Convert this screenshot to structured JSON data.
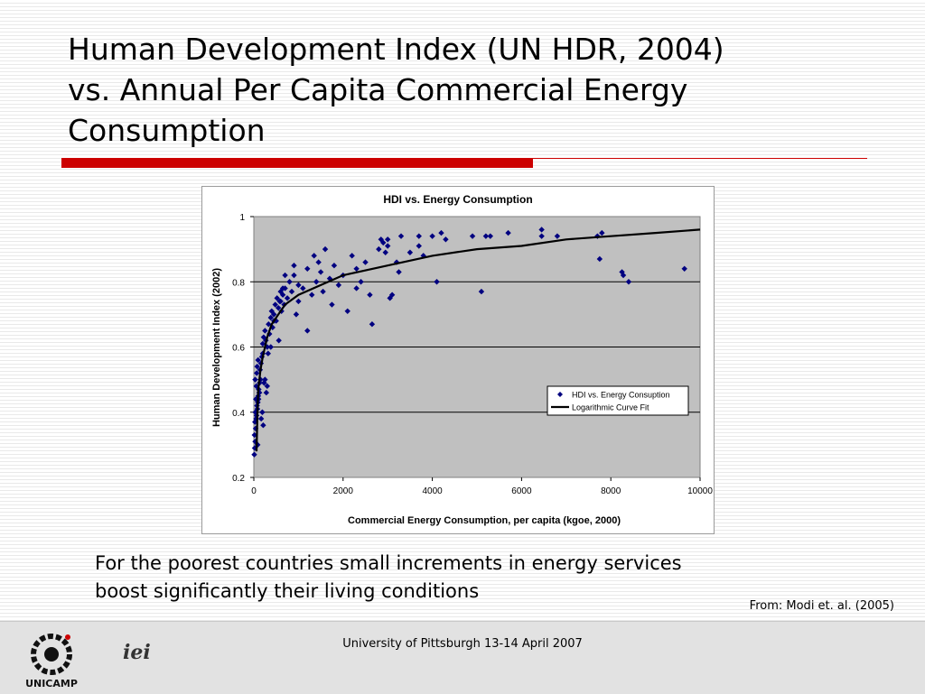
{
  "slide": {
    "title_lines": [
      "Human Development Index (UN HDR, 2004)",
      "vs. Annual Per Capita Commercial Energy",
      "Consumption"
    ],
    "caption_lines": [
      "For the poorest countries small increments in energy services",
      "boost significantly their living conditions"
    ],
    "source": "From: Modi et. al. (2005)",
    "footer_text": "University of Pittsburgh 13-14 April 2007",
    "logos": [
      {
        "name": "unicamp-logo",
        "text": "UNICAMP"
      },
      {
        "name": "iei-logo",
        "text": "iei"
      }
    ],
    "colors": {
      "accent_red": "#cc0000",
      "plot_area": "#c0c0c0",
      "marker": "#000080",
      "curve": "#000000"
    }
  },
  "chart_data": {
    "type": "scatter",
    "title": "HDI vs. Energy Consumption",
    "xlabel": "Commercial Energy Consumption, per capita (kgoe, 2000)",
    "ylabel": "Human Development Index (2002)",
    "xlim": [
      0,
      10000
    ],
    "ylim": [
      0.2,
      1
    ],
    "x_ticks": [
      0,
      2000,
      4000,
      6000,
      8000,
      10000
    ],
    "y_ticks": [
      0.2,
      0.4,
      0.6,
      0.8,
      1
    ],
    "y_tick_labels": [
      "0.2",
      "0.4",
      "0.6",
      "0.8",
      "1"
    ],
    "grid": "horizontal",
    "legend_position": "lower-right",
    "series": [
      {
        "name": "HDI vs. Energy Consuption",
        "kind": "scatter",
        "points": [
          [
            10,
            0.27
          ],
          [
            20,
            0.29
          ],
          [
            30,
            0.31
          ],
          [
            15,
            0.33
          ],
          [
            40,
            0.35
          ],
          [
            25,
            0.37
          ],
          [
            50,
            0.38
          ],
          [
            60,
            0.39
          ],
          [
            35,
            0.4
          ],
          [
            80,
            0.41
          ],
          [
            70,
            0.42
          ],
          [
            90,
            0.43
          ],
          [
            45,
            0.44
          ],
          [
            100,
            0.45
          ],
          [
            120,
            0.46
          ],
          [
            110,
            0.47
          ],
          [
            55,
            0.48
          ],
          [
            130,
            0.49
          ],
          [
            150,
            0.5
          ],
          [
            65,
            0.52
          ],
          [
            140,
            0.53
          ],
          [
            75,
            0.54
          ],
          [
            160,
            0.55
          ],
          [
            95,
            0.56
          ],
          [
            180,
            0.57
          ],
          [
            200,
            0.58
          ],
          [
            105,
            0.44
          ],
          [
            125,
            0.46
          ],
          [
            165,
            0.38
          ],
          [
            190,
            0.4
          ],
          [
            210,
            0.36
          ],
          [
            85,
            0.3
          ],
          [
            30,
            0.5
          ],
          [
            230,
            0.49
          ],
          [
            250,
            0.5
          ],
          [
            280,
            0.46
          ],
          [
            300,
            0.48
          ],
          [
            200,
            0.61
          ],
          [
            220,
            0.63
          ],
          [
            250,
            0.65
          ],
          [
            270,
            0.62
          ],
          [
            300,
            0.6
          ],
          [
            330,
            0.67
          ],
          [
            350,
            0.64
          ],
          [
            380,
            0.69
          ],
          [
            400,
            0.71
          ],
          [
            420,
            0.66
          ],
          [
            450,
            0.7
          ],
          [
            480,
            0.73
          ],
          [
            500,
            0.68
          ],
          [
            520,
            0.75
          ],
          [
            550,
            0.72
          ],
          [
            580,
            0.74
          ],
          [
            600,
            0.77
          ],
          [
            620,
            0.71
          ],
          [
            650,
            0.76
          ],
          [
            680,
            0.73
          ],
          [
            700,
            0.78
          ],
          [
            750,
            0.75
          ],
          [
            800,
            0.8
          ],
          [
            850,
            0.77
          ],
          [
            900,
            0.82
          ],
          [
            950,
            0.7
          ],
          [
            1000,
            0.79
          ],
          [
            1100,
            0.78
          ],
          [
            1200,
            0.65
          ],
          [
            1300,
            0.76
          ],
          [
            1400,
            0.8
          ],
          [
            1500,
            0.83
          ],
          [
            1550,
            0.77
          ],
          [
            1700,
            0.81
          ],
          [
            1800,
            0.85
          ],
          [
            1900,
            0.79
          ],
          [
            2000,
            0.82
          ],
          [
            2100,
            0.71
          ],
          [
            2200,
            0.88
          ],
          [
            2300,
            0.84
          ],
          [
            2400,
            0.8
          ],
          [
            2500,
            0.86
          ],
          [
            2600,
            0.76
          ],
          [
            2650,
            0.67
          ],
          [
            2800,
            0.9
          ],
          [
            2900,
            0.92
          ],
          [
            3000,
            0.93
          ],
          [
            3100,
            0.76
          ],
          [
            3200,
            0.86
          ],
          [
            3300,
            0.94
          ],
          [
            3500,
            0.89
          ],
          [
            3700,
            0.91
          ],
          [
            3800,
            0.88
          ],
          [
            4000,
            0.94
          ],
          [
            4100,
            0.8
          ],
          [
            4300,
            0.93
          ],
          [
            4900,
            0.94
          ],
          [
            5100,
            0.77
          ],
          [
            5300,
            0.94
          ],
          [
            5700,
            0.95
          ],
          [
            6450,
            0.94
          ],
          [
            6800,
            0.94
          ],
          [
            7700,
            0.94
          ],
          [
            7750,
            0.87
          ],
          [
            8250,
            0.83
          ],
          [
            8400,
            0.8
          ],
          [
            9650,
            0.84
          ],
          [
            600,
            0.74
          ],
          [
            450,
            0.68
          ],
          [
            320,
            0.58
          ],
          [
            380,
            0.6
          ],
          [
            700,
            0.82
          ],
          [
            900,
            0.85
          ],
          [
            1000,
            0.74
          ],
          [
            1200,
            0.84
          ],
          [
            1450,
            0.86
          ],
          [
            1600,
            0.9
          ],
          [
            2300,
            0.78
          ],
          [
            2850,
            0.93
          ],
          [
            3000,
            0.91
          ],
          [
            3250,
            0.83
          ],
          [
            4200,
            0.95
          ],
          [
            5200,
            0.94
          ],
          [
            6450,
            0.96
          ],
          [
            7800,
            0.95
          ],
          [
            8280,
            0.82
          ],
          [
            3700,
            0.94
          ],
          [
            2950,
            0.89
          ],
          [
            3050,
            0.75
          ],
          [
            1350,
            0.88
          ],
          [
            1750,
            0.73
          ],
          [
            560,
            0.62
          ],
          [
            650,
            0.78
          ]
        ]
      },
      {
        "name": "Logarithmic Curve Fit",
        "kind": "line",
        "points": [
          [
            60,
            0.28
          ],
          [
            80,
            0.4
          ],
          [
            100,
            0.47
          ],
          [
            150,
            0.53
          ],
          [
            200,
            0.57
          ],
          [
            300,
            0.63
          ],
          [
            400,
            0.67
          ],
          [
            500,
            0.69
          ],
          [
            700,
            0.73
          ],
          [
            1000,
            0.76
          ],
          [
            1500,
            0.79
          ],
          [
            2000,
            0.82
          ],
          [
            3000,
            0.85
          ],
          [
            4000,
            0.88
          ],
          [
            5000,
            0.9
          ],
          [
            6000,
            0.91
          ],
          [
            7000,
            0.93
          ],
          [
            8000,
            0.94
          ],
          [
            9000,
            0.95
          ],
          [
            10000,
            0.96
          ]
        ]
      }
    ]
  }
}
